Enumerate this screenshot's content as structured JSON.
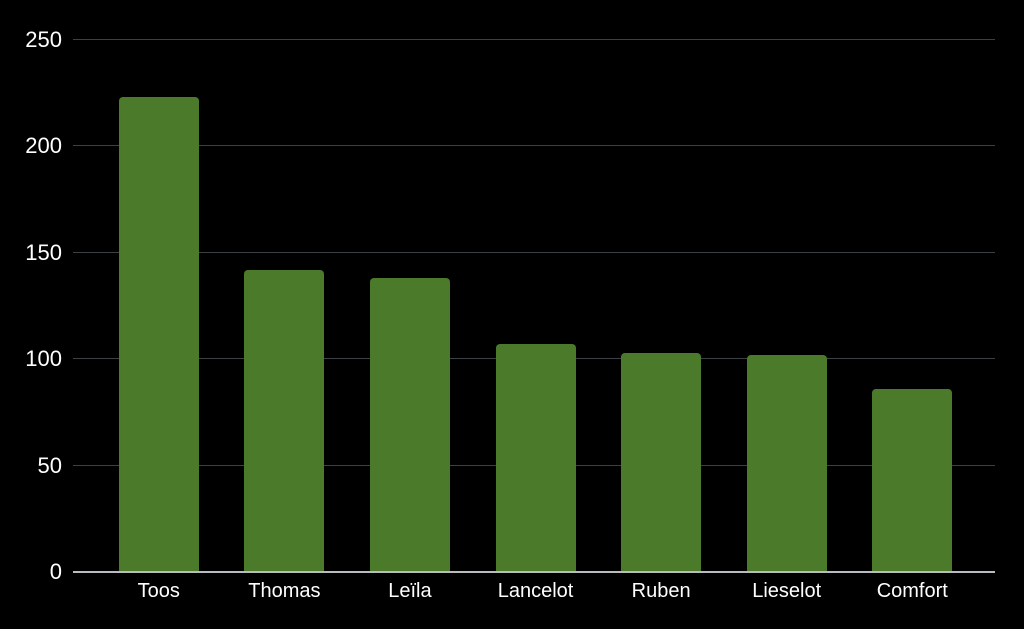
{
  "chart_data": {
    "type": "bar",
    "title": "",
    "xlabel": "",
    "ylabel": "",
    "categories": [
      "Toos",
      "Thomas",
      "Leïla",
      "Lancelot",
      "Ruben",
      "Lieselot",
      "Comfort"
    ],
    "values": [
      223,
      142,
      138,
      107,
      103,
      102,
      86
    ],
    "ylim": [
      0,
      250
    ],
    "yticks": [
      0,
      50,
      100,
      150,
      200,
      250
    ],
    "grid": true,
    "legend_position": "none",
    "colors": {
      "background": "#000000",
      "bar": "#4b7a2b",
      "gridline": "#3b4045",
      "baseline": "#b9bcbf",
      "tick_label": "#ffffff"
    }
  }
}
